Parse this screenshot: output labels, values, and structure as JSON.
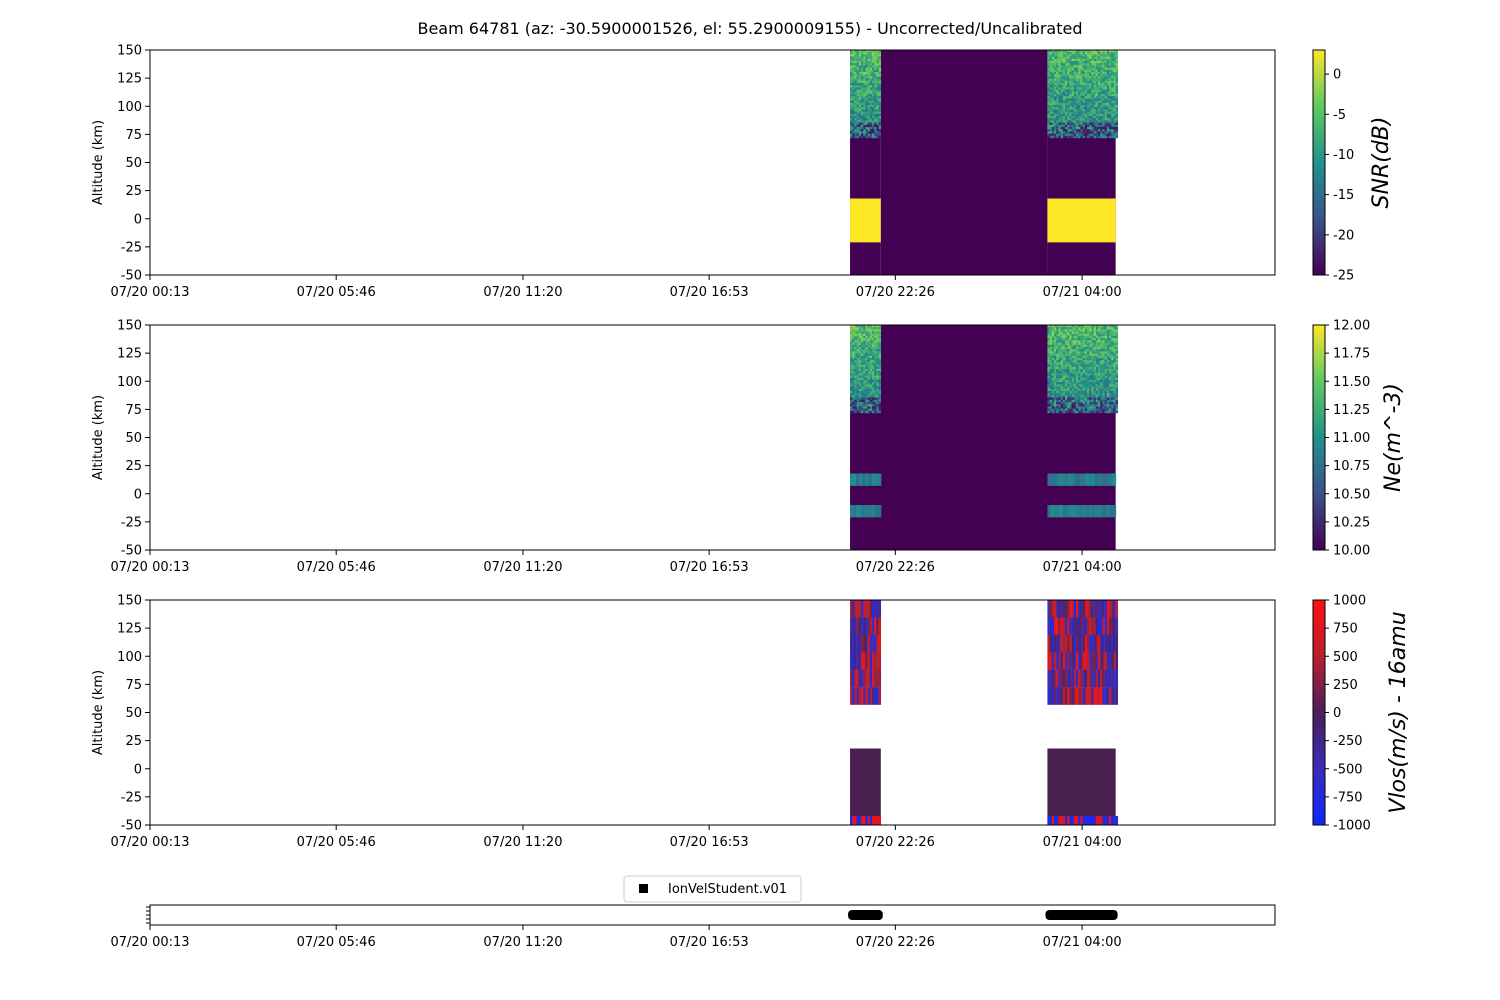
{
  "figure": {
    "title": "Beam 64781 (az: -30.5900001526, el: 55.2900009155) - Uncorrected/Uncalibrated"
  },
  "chart_data": [
    {
      "type": "heatmap",
      "id": "snr",
      "ylabel": "Altitude (km)",
      "colorbar_label": "SNR(dB)",
      "colormap": "viridis",
      "clim": [
        -25,
        3
      ],
      "colorbar_ticks": [
        0,
        -5,
        -10,
        -15,
        -20,
        -25
      ],
      "xlim": [
        "07/20 00:13",
        "07/21 09:45"
      ],
      "xticks": [
        "07/20 00:13",
        "07/20 05:46",
        "07/20 11:20",
        "07/20 16:53",
        "07/20 22:26",
        "07/21 04:00"
      ],
      "ylim": [
        -50,
        150
      ],
      "yticks": [
        150,
        125,
        100,
        75,
        50,
        25,
        0,
        -25,
        -50
      ],
      "blocks": [
        {
          "t0": "07/20 21:05",
          "t1": "07/20 22:00",
          "y0": -50,
          "y1": 150,
          "fill": "low"
        },
        {
          "t0": "07/20 22:00",
          "t1": "07/21 02:58",
          "y0": -50,
          "y1": 150,
          "fill": "low"
        },
        {
          "t0": "07/21 02:58",
          "t1": "07/21 05:00",
          "y0": -50,
          "y1": 150,
          "fill": "low"
        },
        {
          "t0": "07/20 21:05",
          "t1": "07/20 22:00",
          "y0": 73,
          "y1": 150,
          "fill": "noise"
        },
        {
          "t0": "07/21 02:58",
          "t1": "07/21 05:00",
          "y0": 73,
          "y1": 150,
          "fill": "noise"
        },
        {
          "t0": "07/20 21:05",
          "t1": "07/20 22:00",
          "y0": -21,
          "y1": 18,
          "fill": "high"
        },
        {
          "t0": "07/21 02:58",
          "t1": "07/21 05:00",
          "y0": -21,
          "y1": 18,
          "fill": "high"
        }
      ]
    },
    {
      "type": "heatmap",
      "id": "ne",
      "ylabel": "Altitude (km)",
      "colorbar_label": "Ne(m^-3)",
      "colormap": "viridis",
      "clim": [
        10.0,
        12.0
      ],
      "colorbar_ticks": [
        "12.00",
        "11.75",
        "11.50",
        "11.25",
        "11.00",
        "10.75",
        "10.50",
        "10.25",
        "10.00"
      ],
      "xlim": [
        "07/20 00:13",
        "07/21 09:45"
      ],
      "xticks": [
        "07/20 00:13",
        "07/20 05:46",
        "07/20 11:20",
        "07/20 16:53",
        "07/20 22:26",
        "07/21 04:00"
      ],
      "ylim": [
        -50,
        150
      ],
      "yticks": [
        150,
        125,
        100,
        75,
        50,
        25,
        0,
        -25,
        -50
      ],
      "blocks": [
        {
          "t0": "07/20 21:05",
          "t1": "07/21 05:00",
          "y0": -50,
          "y1": 150,
          "fill": "low"
        },
        {
          "t0": "07/20 21:05",
          "t1": "07/20 22:00",
          "y0": 73,
          "y1": 150,
          "fill": "noise"
        },
        {
          "t0": "07/21 02:58",
          "t1": "07/21 05:00",
          "y0": 73,
          "y1": 150,
          "fill": "noise"
        },
        {
          "t0": "07/20 21:05",
          "t1": "07/20 22:00",
          "y0": 7,
          "y1": 18,
          "fill": "mid"
        },
        {
          "t0": "07/21 02:58",
          "t1": "07/21 05:00",
          "y0": 7,
          "y1": 18,
          "fill": "mid"
        },
        {
          "t0": "07/20 21:05",
          "t1": "07/20 22:00",
          "y0": -21,
          "y1": -10,
          "fill": "mid"
        },
        {
          "t0": "07/21 02:58",
          "t1": "07/21 05:00",
          "y0": -21,
          "y1": -10,
          "fill": "mid"
        }
      ]
    },
    {
      "type": "heatmap",
      "id": "vlos",
      "ylabel": "Altitude (km)",
      "colorbar_label": "Vlos(m/s) - 16amu",
      "colormap": "bwr",
      "clim": [
        -1000,
        1000
      ],
      "colorbar_ticks": [
        1000,
        750,
        500,
        250,
        0,
        -250,
        -500,
        -750,
        -1000
      ],
      "xlim": [
        "07/20 00:13",
        "07/21 09:45"
      ],
      "xticks": [
        "07/20 00:13",
        "07/20 05:46",
        "07/20 11:20",
        "07/20 16:53",
        "07/20 22:26",
        "07/21 04:00"
      ],
      "ylim": [
        -50,
        150
      ],
      "yticks": [
        150,
        125,
        100,
        75,
        50,
        25,
        0,
        -25,
        -50
      ],
      "blocks": [
        {
          "t0": "07/20 21:05",
          "t1": "07/20 22:00",
          "y0": 57,
          "y1": 150,
          "fill": "stripes"
        },
        {
          "t0": "07/21 02:58",
          "t1": "07/21 05:00",
          "y0": 57,
          "y1": 150,
          "fill": "stripes"
        },
        {
          "t0": "07/20 21:05",
          "t1": "07/20 22:00",
          "y0": -50,
          "y1": 18,
          "fill": "flat"
        },
        {
          "t0": "07/21 02:58",
          "t1": "07/21 05:00",
          "y0": -50,
          "y1": 18,
          "fill": "flat"
        }
      ]
    },
    {
      "type": "timeline",
      "id": "fit-status",
      "legend": [
        "IonVelStudent.v01"
      ],
      "legend_position": "top-center",
      "xlim": [
        "07/20 00:13",
        "07/21 09:45"
      ],
      "xticks": [
        "07/20 00:13",
        "07/20 05:46",
        "07/20 11:20",
        "07/20 16:53",
        "07/20 22:26",
        "07/21 04:00"
      ],
      "segments": [
        {
          "t0": "07/20 21:05",
          "t1": "07/20 22:00"
        },
        {
          "t0": "07/21 02:58",
          "t1": "07/21 05:00"
        }
      ]
    }
  ]
}
